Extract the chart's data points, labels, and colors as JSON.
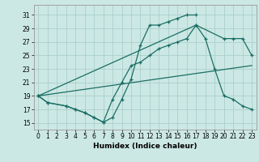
{
  "xlabel": "Humidex (Indice chaleur)",
  "bg_color": "#cce8e4",
  "grid_color": "#aacfcb",
  "line_color": "#1a6e64",
  "xlim": [
    -0.5,
    23.5
  ],
  "ylim": [
    14,
    32.5
  ],
  "xticks": [
    0,
    1,
    2,
    3,
    4,
    5,
    6,
    7,
    8,
    9,
    10,
    11,
    12,
    13,
    14,
    15,
    16,
    17,
    18,
    19,
    20,
    21,
    22,
    23
  ],
  "yticks": [
    15,
    17,
    19,
    21,
    23,
    25,
    27,
    29,
    31
  ],
  "curve1_x": [
    0,
    1,
    3,
    4,
    5,
    6,
    7,
    8,
    9,
    10,
    11,
    12,
    13,
    14,
    15,
    16,
    17
  ],
  "curve1_y": [
    19,
    18,
    17.5,
    17,
    16.5,
    15.8,
    15.1,
    15.8,
    18.5,
    21.5,
    26.5,
    29.5,
    29.5,
    30,
    30.5,
    31,
    31
  ],
  "curve2_x": [
    0,
    1,
    3,
    4,
    5,
    6,
    7,
    8,
    9,
    10,
    11,
    12,
    13,
    14,
    15,
    16,
    17,
    18,
    19,
    20,
    21,
    22,
    23
  ],
  "curve2_y": [
    19,
    18,
    17.5,
    17,
    16.5,
    15.8,
    15.1,
    18.5,
    21,
    23.5,
    24,
    25,
    26,
    26.5,
    27,
    27.5,
    29.5,
    27.5,
    23,
    19,
    18.5,
    17.5,
    17
  ],
  "curve3_x": [
    0,
    17,
    20,
    21,
    22,
    23
  ],
  "curve3_y": [
    19,
    29.5,
    27.5,
    27.5,
    27.5,
    25
  ],
  "line_x": [
    0,
    23
  ],
  "line_y": [
    19,
    23.5
  ]
}
